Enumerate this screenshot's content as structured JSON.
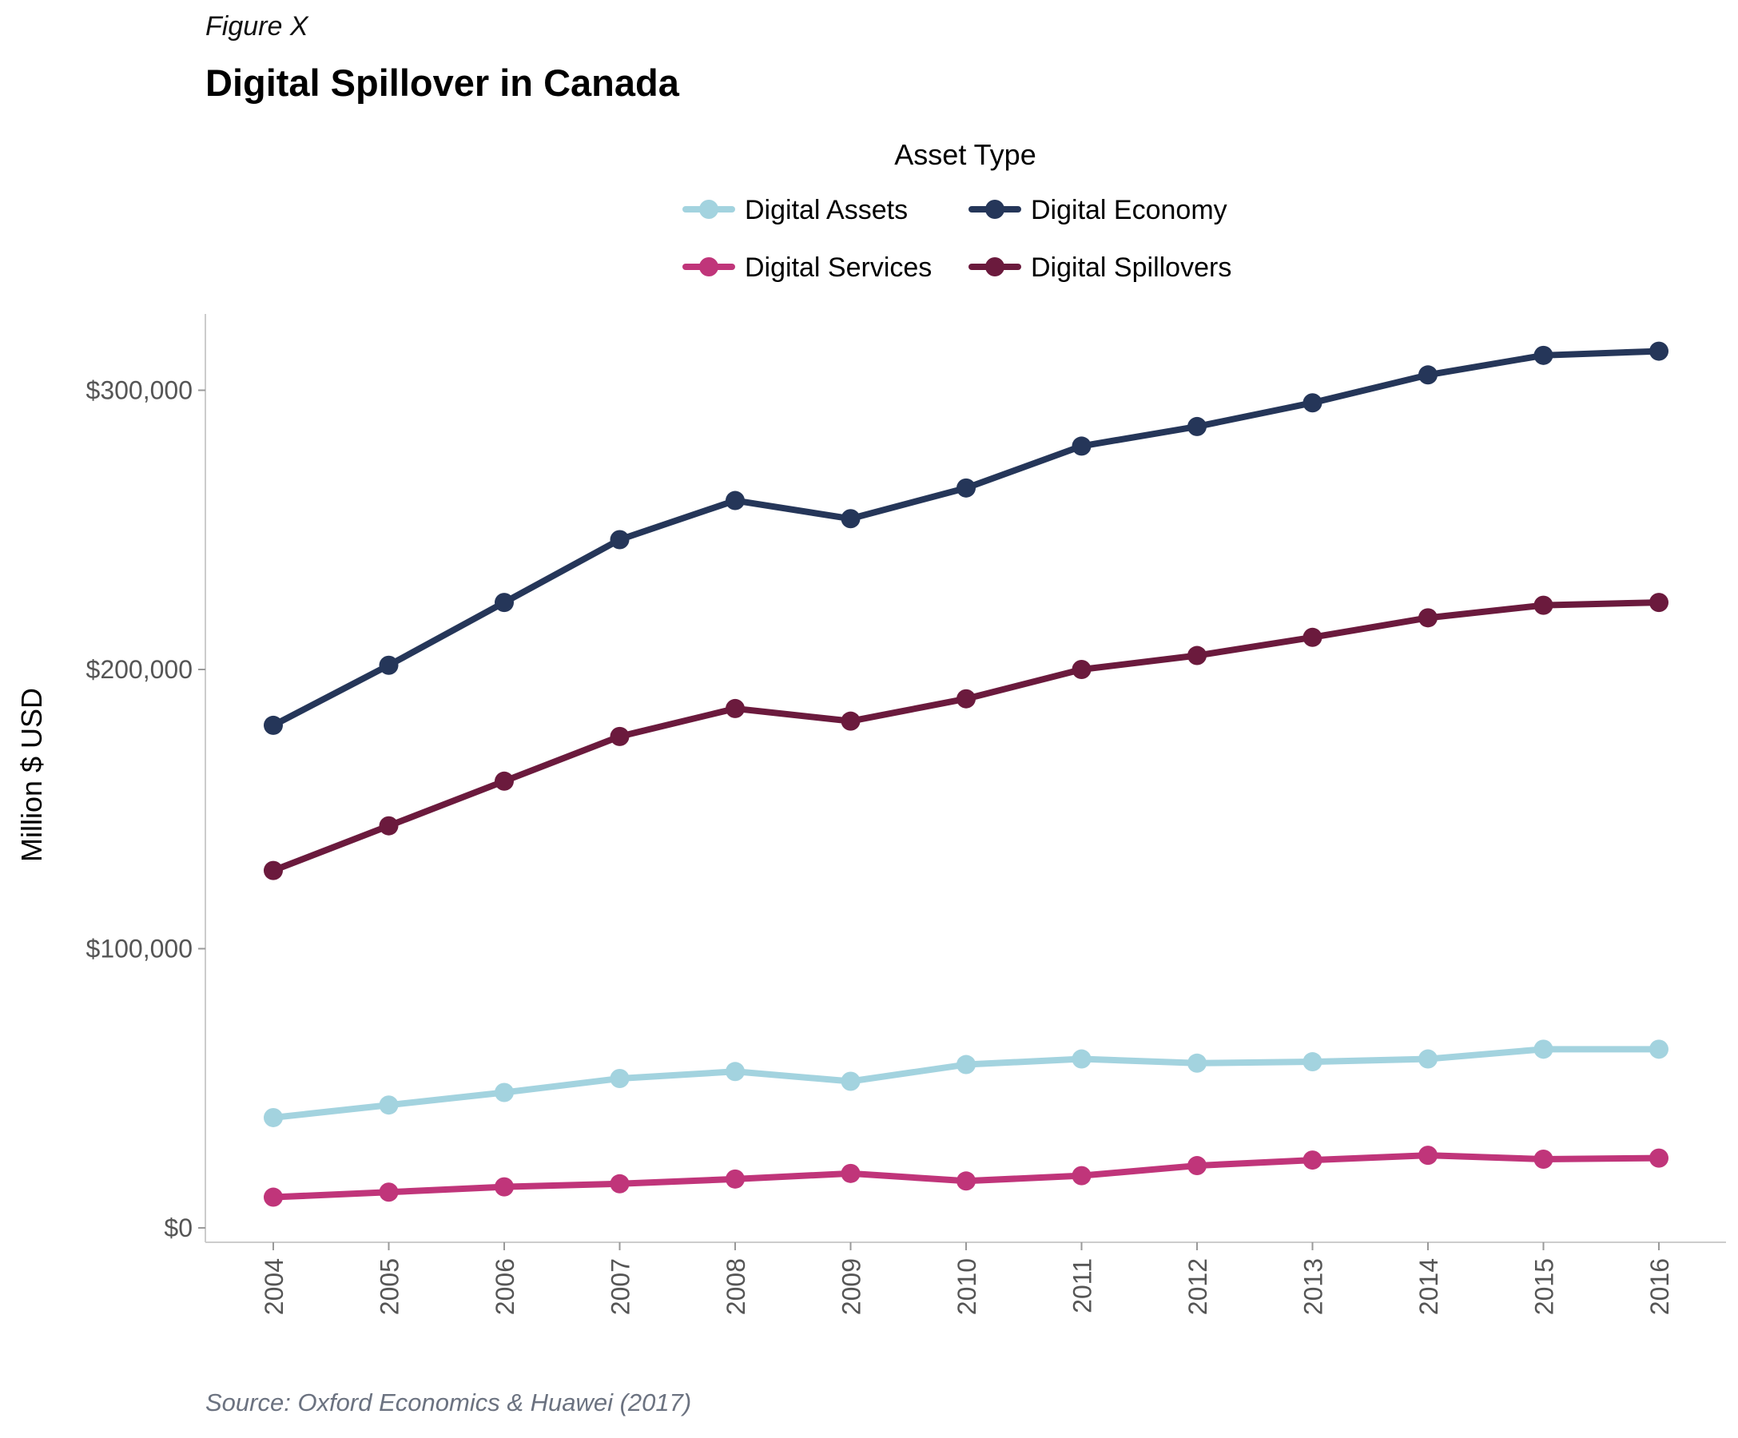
{
  "figure_label": "Figure X",
  "source": "Source: Oxford Economics & Huawei (2017)",
  "chart_data": {
    "type": "line",
    "title": "Digital Spillover in Canada",
    "xlabel": "",
    "ylabel": "Million $ USD",
    "legend_title": "Asset Type",
    "legend_position": "top",
    "grid": false,
    "ylim": [
      0,
      330000
    ],
    "yticks": [
      0,
      100000,
      200000,
      300000
    ],
    "ytick_labels": [
      "$0",
      "$100,000",
      "$200,000",
      "$300,000"
    ],
    "categories": [
      "2004",
      "2005",
      "2006",
      "2007",
      "2008",
      "2009",
      "2010",
      "2011",
      "2012",
      "2013",
      "2014",
      "2015",
      "2016"
    ],
    "series": [
      {
        "name": "Digital Assets",
        "color": "#a3d3df",
        "values": [
          39500,
          44000,
          48500,
          53500,
          56000,
          52500,
          58500,
          60500,
          59000,
          59500,
          60500,
          64000,
          64000
        ]
      },
      {
        "name": "Digital Economy",
        "color": "#253659",
        "values": [
          180000,
          201500,
          224000,
          246500,
          260500,
          254000,
          265000,
          280000,
          287000,
          295500,
          305500,
          312500,
          314000
        ]
      },
      {
        "name": "Digital Services",
        "color": "#c0357a",
        "values": [
          11000,
          12800,
          14700,
          15800,
          17500,
          19500,
          16800,
          18700,
          22300,
          24300,
          26000,
          24600,
          25000
        ]
      },
      {
        "name": "Digital Spillovers",
        "color": "#6b1a3d",
        "values": [
          128000,
          144000,
          160000,
          176000,
          186000,
          181500,
          189500,
          200000,
          205000,
          211500,
          218500,
          223000,
          224000
        ]
      }
    ]
  }
}
